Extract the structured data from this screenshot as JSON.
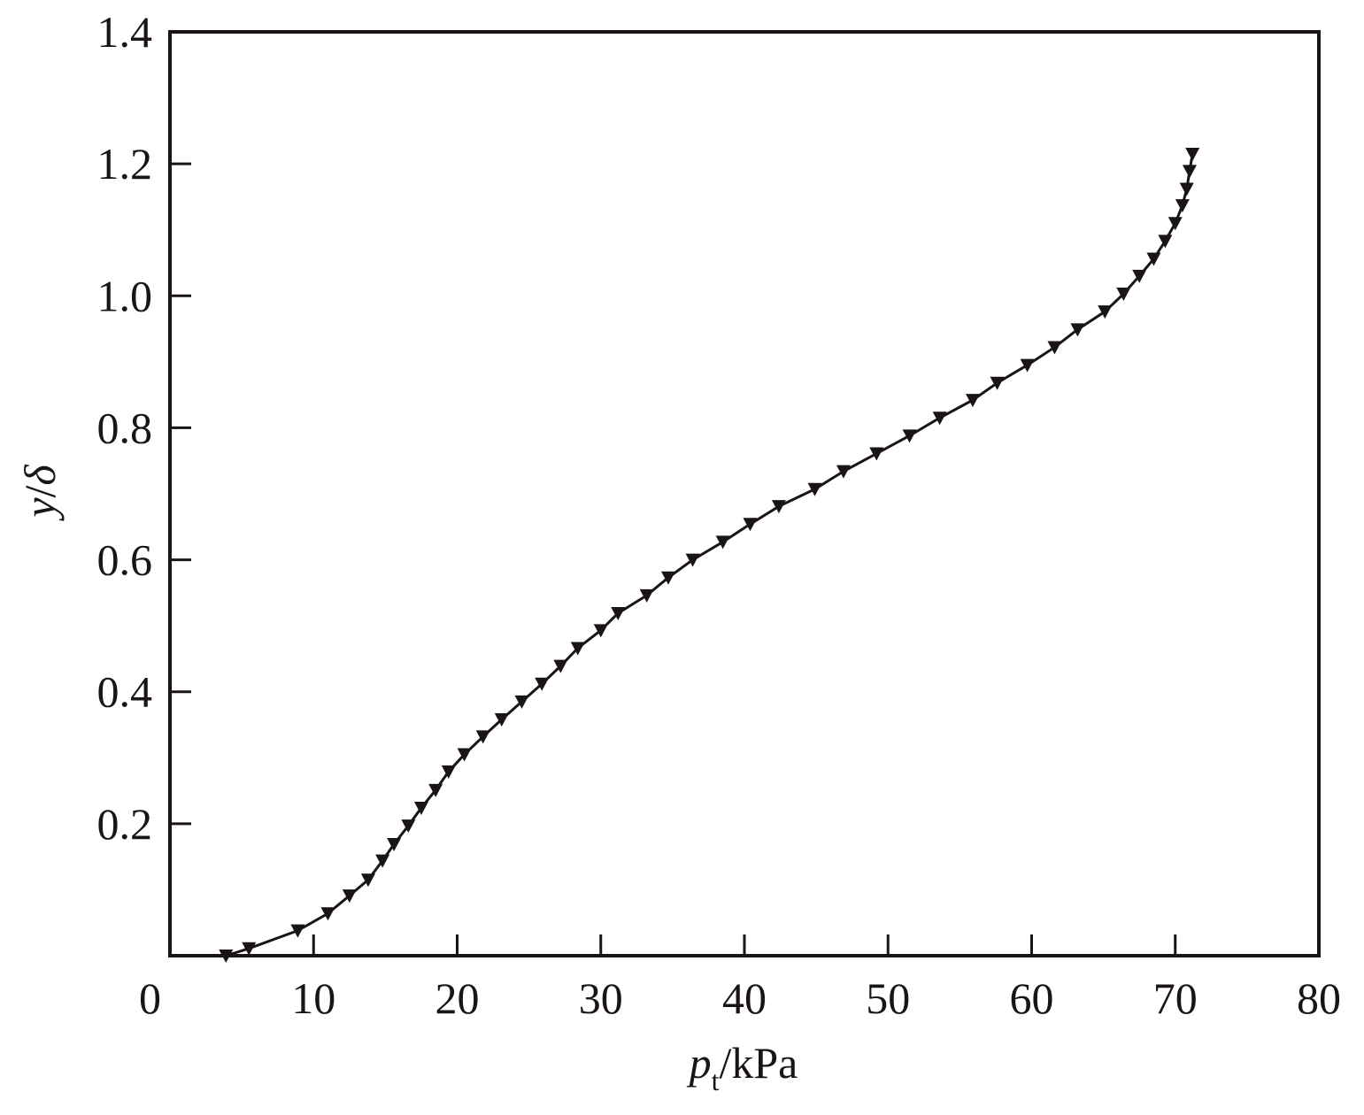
{
  "chart_data": {
    "type": "line",
    "xlabel": [
      "p",
      "t",
      "/kPa"
    ],
    "ylabel": [
      "y",
      "/",
      "δ"
    ],
    "xlim": [
      0,
      80
    ],
    "ylim": [
      0,
      1.4
    ],
    "xticks": [
      0,
      10,
      20,
      30,
      40,
      50,
      60,
      70,
      80
    ],
    "yticks": [
      0.2,
      0.4,
      0.6,
      0.8,
      {
        "value": 1,
        "label": "1.0"
      },
      1.2,
      1.4
    ],
    "series": [
      {
        "color": "#1a1414",
        "marker": "triangle-down",
        "x": [
          3.9,
          5.5,
          8.9,
          11.0,
          12.5,
          13.8,
          14.8,
          15.6,
          16.6,
          17.5,
          18.5,
          19.4,
          20.5,
          21.8,
          23.1,
          24.5,
          25.9,
          27.2,
          28.4,
          30.0,
          31.2,
          33.2,
          34.7,
          36.4,
          38.5,
          40.4,
          42.4,
          44.9,
          46.9,
          49.2,
          51.5,
          53.6,
          55.9,
          57.6,
          59.7,
          61.6,
          63.2,
          65.1,
          66.4,
          67.5,
          68.5,
          69.3,
          70.0,
          70.5,
          70.8,
          71.0,
          71.2
        ],
        "values": [
          0.0,
          0.011,
          0.038,
          0.064,
          0.091,
          0.115,
          0.144,
          0.169,
          0.197,
          0.224,
          0.251,
          0.279,
          0.305,
          0.332,
          0.358,
          0.385,
          0.412,
          0.439,
          0.466,
          0.493,
          0.519,
          0.546,
          0.573,
          0.6,
          0.627,
          0.654,
          0.681,
          0.707,
          0.734,
          0.761,
          0.788,
          0.815,
          0.842,
          0.868,
          0.895,
          0.922,
          0.949,
          0.976,
          1.003,
          1.03,
          1.056,
          1.083,
          1.11,
          1.137,
          1.162,
          1.189,
          1.215
        ]
      }
    ]
  }
}
